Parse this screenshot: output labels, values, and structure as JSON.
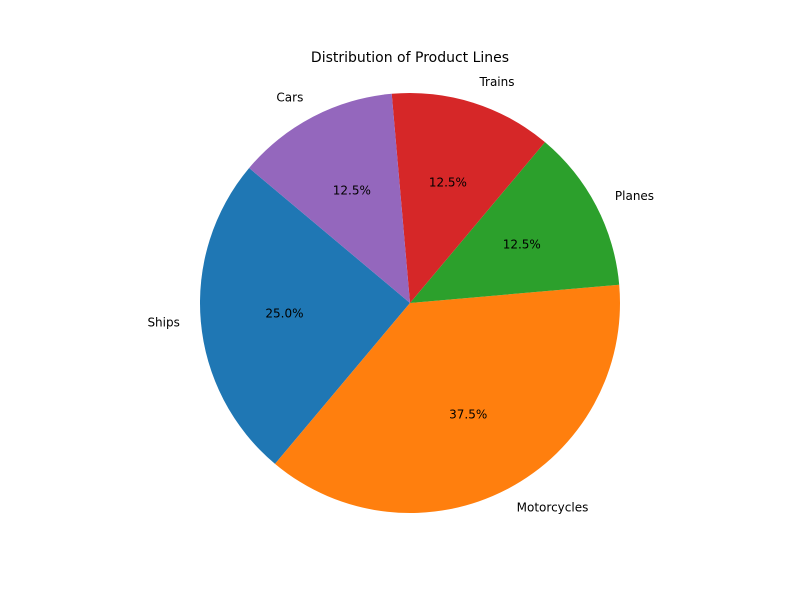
{
  "chart_data": {
    "type": "pie",
    "title": "Distribution of Product Lines",
    "slices": [
      {
        "label": "Ships",
        "value": 25.0,
        "pct_label": "25.0%",
        "color": "#1f77b4"
      },
      {
        "label": "Motorcycles",
        "value": 37.5,
        "pct_label": "37.5%",
        "color": "#ff7f0e"
      },
      {
        "label": "Planes",
        "value": 12.5,
        "pct_label": "12.5%",
        "color": "#2ca02c"
      },
      {
        "label": "Trains",
        "value": 12.5,
        "pct_label": "12.5%",
        "color": "#d62728"
      },
      {
        "label": "Cars",
        "value": 12.5,
        "pct_label": "12.5%",
        "color": "#9467bd"
      }
    ]
  }
}
